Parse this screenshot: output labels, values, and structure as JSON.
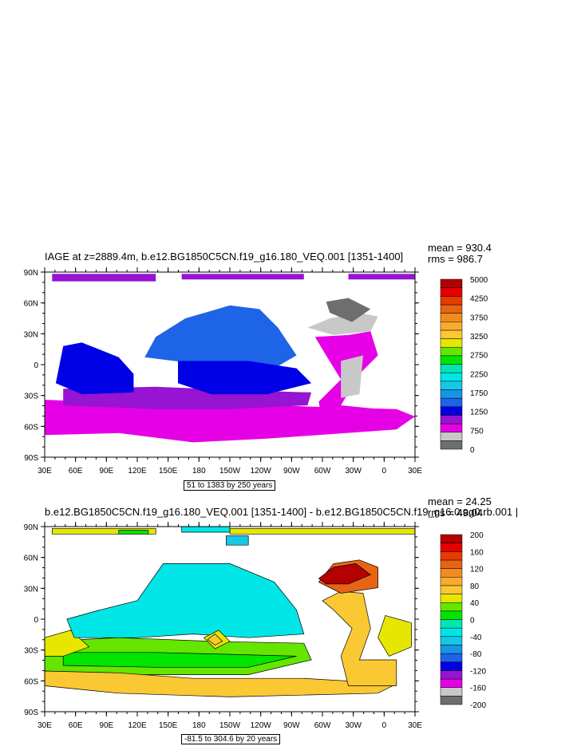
{
  "panels": [
    {
      "id": "top",
      "title": "IAGE at z=2889.4m, b.e12.BG1850C5CN.f19_g16.180_VEQ.001 [1351-1400]",
      "mean": "mean = 930.4",
      "rms": "rms = 986.7",
      "info": "51 to 1383 by 250 years",
      "colorbar": {
        "colors": [
          "#6e6e6e",
          "#c8c8c8",
          "#e600e6",
          "#9614d2",
          "#0000e6",
          "#1e64e6",
          "#1496e6",
          "#14c8e6",
          "#00e6e6",
          "#00e6b4",
          "#00e600",
          "#64e600",
          "#e6e600",
          "#fac832",
          "#faaa32",
          "#f08c1e",
          "#e66414",
          "#e63c00",
          "#e60000",
          "#b40000"
        ],
        "labels": [
          "0",
          "750",
          "1250",
          "1750",
          "2250",
          "2750",
          "3250",
          "3750",
          "4250",
          "5000"
        ]
      }
    },
    {
      "id": "bottom",
      "title": "b.e12.BG1850C5CN.f19_g16.180_VEQ.001 [1351-1400] - b.e12.BG1850C5CN.f19_g16.0.ag0.rb.001 |",
      "mean": "mean = 24.25",
      "rms": "rms = 49.04",
      "info": "-81.5 to 304.6 by 20 years",
      "colorbar": {
        "colors": [
          "#6e6e6e",
          "#c8c8c8",
          "#e600e6",
          "#9614d2",
          "#0000e6",
          "#1e64e6",
          "#1496e6",
          "#14c8e6",
          "#00e6e6",
          "#00e6b4",
          "#00e600",
          "#64e600",
          "#e6e600",
          "#fac832",
          "#faaa32",
          "#f08c1e",
          "#e66414",
          "#e63c00",
          "#e60000",
          "#b40000"
        ],
        "labels": [
          "-200",
          "-160",
          "-120",
          "-80",
          "-40",
          "0",
          "40",
          "80",
          "120",
          "160",
          "200"
        ]
      }
    }
  ],
  "axes": {
    "lat_labels": [
      "90N",
      "60N",
      "30N",
      "0",
      "30S",
      "60S",
      "90S"
    ],
    "lon_labels": [
      "30E",
      "60E",
      "90E",
      "120E",
      "150E",
      "180",
      "150W",
      "120W",
      "90W",
      "60W",
      "30W",
      "0",
      "30E"
    ]
  },
  "chart_data": [
    {
      "type": "heatmap",
      "title": "IAGE at z=2889.4m, b.e12.BG1850C5CN.f19_g16.180_VEQ.001 [1351-1400]",
      "xlabel": "",
      "ylabel": "",
      "x_ticks": [
        "30E",
        "60E",
        "90E",
        "120E",
        "150E",
        "180",
        "150W",
        "120W",
        "90W",
        "60W",
        "30W",
        "0",
        "30E"
      ],
      "y_ticks": [
        "90N",
        "60N",
        "30N",
        "0",
        "30S",
        "60S",
        "90S"
      ],
      "xlim": [
        30,
        390
      ],
      "ylim": [
        -90,
        90
      ],
      "colorbar_labels": [
        "0",
        "750",
        "1250",
        "1750",
        "2250",
        "2750",
        "3250",
        "3750",
        "4250",
        "5000"
      ],
      "mean": 930.4,
      "rms": 986.7,
      "contour_range": "51 to 1383 by 250 years"
    },
    {
      "type": "heatmap",
      "title": "b.e12.BG1850C5CN.f19_g16.180_VEQ.001 [1351-1400] - b.e12.BG1850C5CN.f19_g16.0.ag0.rb.001 |",
      "xlabel": "",
      "ylabel": "",
      "x_ticks": [
        "30E",
        "60E",
        "90E",
        "120E",
        "150E",
        "180",
        "150W",
        "120W",
        "90W",
        "60W",
        "30W",
        "0",
        "30E"
      ],
      "y_ticks": [
        "90N",
        "60N",
        "30N",
        "0",
        "30S",
        "60S",
        "90S"
      ],
      "xlim": [
        30,
        390
      ],
      "ylim": [
        -90,
        90
      ],
      "colorbar_labels": [
        "-200",
        "-160",
        "-120",
        "-80",
        "-40",
        "0",
        "40",
        "80",
        "120",
        "160",
        "200"
      ],
      "mean": 24.25,
      "rms": 49.04,
      "contour_range": "-81.5 to 304.6 by 20 years"
    }
  ]
}
